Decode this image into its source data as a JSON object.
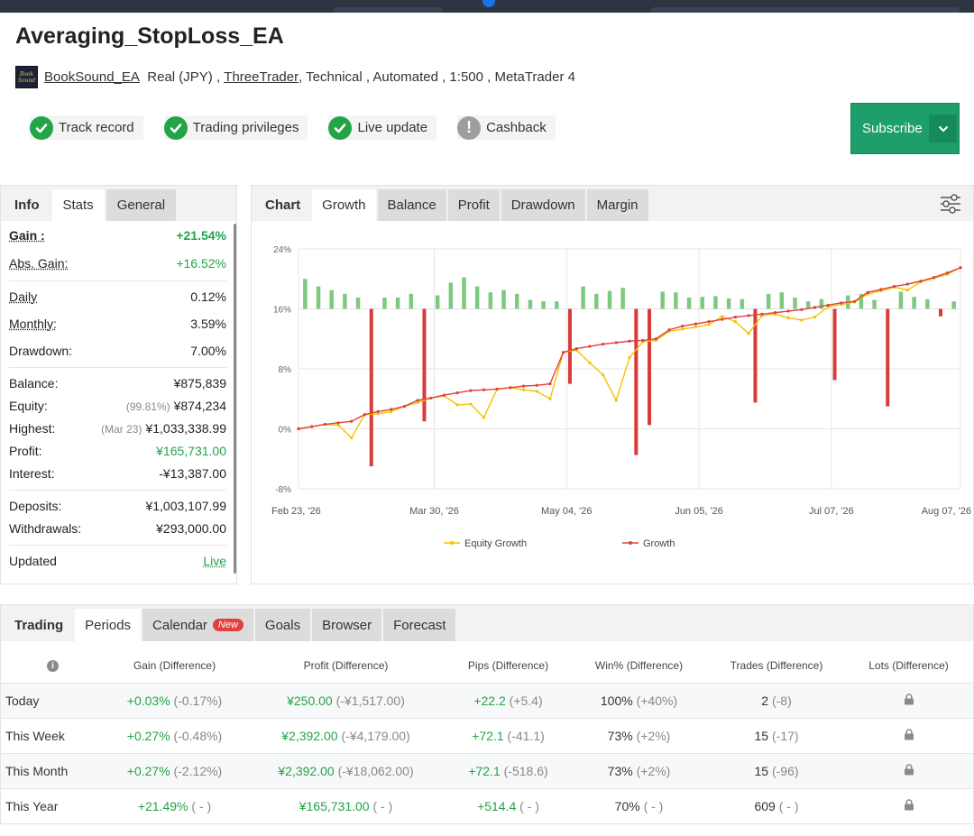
{
  "page": {
    "title": "Averaging_StopLoss_EA"
  },
  "meta": {
    "author": "BookSound_EA",
    "account": "Real (JPY) ,",
    "broker": "ThreeTrader",
    "details": ", Technical , Automated , 1:500 , MetaTrader 4",
    "logo_text": "Book Sound"
  },
  "badges": [
    {
      "label": "Track record",
      "status": "ok"
    },
    {
      "label": "Trading privileges",
      "status": "ok"
    },
    {
      "label": "Live update",
      "status": "ok"
    },
    {
      "label": "Cashback",
      "status": "none"
    }
  ],
  "subscribe": {
    "label": "Subscribe"
  },
  "left_tabs": [
    "Info",
    "Stats",
    "General"
  ],
  "stats": {
    "gain": {
      "label": "Gain :",
      "value": "+21.54%"
    },
    "abs_gain": {
      "label": "Abs. Gain:",
      "value": "+16.52%"
    },
    "daily": {
      "label": "Daily",
      "value": "0.12%"
    },
    "monthly": {
      "label": "Monthly:",
      "value": "3.59%"
    },
    "drawdown": {
      "label": "Drawdown:",
      "value": "7.00%"
    },
    "balance": {
      "label": "Balance:",
      "value": "¥875,839"
    },
    "equity": {
      "label": "Equity:",
      "note": "(99.81%)",
      "value": "¥874,234"
    },
    "highest": {
      "label": "Highest:",
      "note": "(Mar 23)",
      "value": "¥1,033,338.99"
    },
    "profit": {
      "label": "Profit:",
      "value": "¥165,731.00"
    },
    "interest": {
      "label": "Interest:",
      "value": "-¥13,387.00"
    },
    "deposits": {
      "label": "Deposits:",
      "value": "¥1,003,107.99"
    },
    "withdrawals": {
      "label": "Withdrawals:",
      "value": "¥293,000.00"
    },
    "updated": {
      "label": "Updated",
      "value": "Live"
    }
  },
  "chart_tabs": [
    "Chart",
    "Growth",
    "Balance",
    "Profit",
    "Drawdown",
    "Margin"
  ],
  "chart_data": {
    "type": "line",
    "y_ticks": [
      "24%",
      "16%",
      "8%",
      "0%",
      "-8%"
    ],
    "ylim": [
      -8,
      24
    ],
    "x_ticks": [
      "Feb 23, '26",
      "Mar 30, '26",
      "May 04, '26",
      "Jun 05, '26",
      "Jul 07, '26",
      "Aug 07, '26"
    ],
    "legend": [
      "Equity Growth",
      "Growth"
    ],
    "legend_position": "bottom",
    "grid": true,
    "colors": {
      "growth": "#e0413d",
      "equity": "#f2c200",
      "bar_pos": "#7cc97f",
      "bar_neg": "#d93b3b"
    },
    "series": [
      {
        "name": "Growth",
        "x": [
          0,
          2,
          4,
          6,
          8,
          10,
          12,
          14,
          16,
          18,
          20,
          22,
          24,
          26,
          28,
          30,
          32,
          34,
          36,
          38,
          40,
          42,
          44,
          46,
          48,
          50,
          52,
          54,
          56,
          58,
          60,
          62,
          64,
          66,
          68,
          70,
          72,
          74,
          76,
          78,
          80,
          82,
          84,
          86,
          88,
          90,
          92,
          94,
          96,
          98,
          100
        ],
        "values": [
          0.0,
          0.3,
          0.6,
          0.8,
          1.0,
          1.9,
          2.3,
          2.6,
          3.0,
          3.8,
          4.1,
          4.5,
          4.8,
          5.1,
          5.2,
          5.3,
          5.5,
          5.7,
          5.8,
          6.0,
          10.2,
          10.7,
          11.0,
          11.3,
          11.5,
          11.7,
          11.8,
          12.0,
          13.2,
          13.7,
          14.0,
          14.3,
          14.6,
          14.9,
          15.1,
          15.3,
          15.5,
          15.7,
          15.9,
          16.2,
          16.5,
          16.8,
          17.0,
          18.2,
          18.6,
          19.0,
          19.3,
          19.7,
          20.2,
          20.8,
          21.5
        ]
      },
      {
        "name": "Equity Growth",
        "x": [
          0,
          2,
          4,
          6,
          8,
          10,
          12,
          14,
          16,
          18,
          20,
          22,
          24,
          26,
          28,
          30,
          32,
          34,
          36,
          38,
          40,
          42,
          44,
          46,
          48,
          50,
          52,
          54,
          56,
          58,
          60,
          62,
          64,
          66,
          68,
          70,
          72,
          74,
          76,
          78,
          80,
          82,
          84,
          86,
          88,
          90,
          92,
          94,
          96,
          98,
          100
        ],
        "values": [
          0.0,
          0.3,
          0.6,
          0.5,
          -1.2,
          1.9,
          2.0,
          2.3,
          3.0,
          3.5,
          4.1,
          4.4,
          3.2,
          3.3,
          1.5,
          5.3,
          5.5,
          5.2,
          5.0,
          4.0,
          10.2,
          10.5,
          8.8,
          7.2,
          3.8,
          9.5,
          11.6,
          11.8,
          13.0,
          13.3,
          13.6,
          13.9,
          15.0,
          14.3,
          12.7,
          15.1,
          15.3,
          14.8,
          14.5,
          14.9,
          16.3,
          16.6,
          16.9,
          18.0,
          18.4,
          18.9,
          18.5,
          19.6,
          20.1,
          20.6,
          21.5
        ]
      }
    ],
    "bars": {
      "x": [
        1,
        3,
        5,
        7,
        9,
        11,
        13,
        15,
        17,
        19,
        21,
        23,
        25,
        27,
        29,
        31,
        33,
        35,
        37,
        39,
        41,
        43,
        45,
        47,
        49,
        51,
        53,
        55,
        57,
        59,
        61,
        63,
        65,
        67,
        69,
        71,
        73,
        75,
        77,
        79,
        81,
        83,
        85,
        87,
        89,
        91,
        93,
        95,
        97,
        99
      ],
      "values": [
        4,
        3,
        2.5,
        2,
        1.5,
        -21,
        1.5,
        1.5,
        2,
        -15,
        1.8,
        3.5,
        4.2,
        3,
        2.2,
        2.5,
        2,
        1.2,
        1,
        1,
        -10,
        3,
        2,
        2.4,
        2.8,
        -19.5,
        -15.5,
        2.3,
        2.2,
        1.5,
        1.6,
        1.7,
        1.4,
        1.3,
        -12.5,
        2,
        2.2,
        1.5,
        1,
        1.3,
        -9.5,
        1.8,
        2,
        1.2,
        -13,
        2.3,
        1.6,
        1.3,
        -1,
        1
      ]
    }
  },
  "bottom_tabs": [
    {
      "label": "Trading"
    },
    {
      "label": "Periods"
    },
    {
      "label": "Calendar",
      "badge": "New"
    },
    {
      "label": "Goals"
    },
    {
      "label": "Browser"
    },
    {
      "label": "Forecast"
    }
  ],
  "periods": {
    "headers": [
      "Gain (Difference)",
      "Profit (Difference)",
      "Pips (Difference)",
      "Win% (Difference)",
      "Trades (Difference)",
      "Lots (Difference)"
    ],
    "rows": [
      {
        "label": "Today",
        "gain": "+0.03%",
        "gain_d": "(-0.17%)",
        "profit": "¥250.00",
        "profit_d": "(-¥1,517.00)",
        "pips": "+22.2",
        "pips_d": "(+5.4)",
        "win": "100%",
        "win_d": "(+40%)",
        "trades": "2",
        "trades_d": "(-8)"
      },
      {
        "label": "This Week",
        "gain": "+0.27%",
        "gain_d": "(-0.48%)",
        "profit": "¥2,392.00",
        "profit_d": "(-¥4,179.00)",
        "pips": "+72.1",
        "pips_d": "(-41.1)",
        "win": "73%",
        "win_d": "(+2%)",
        "trades": "15",
        "trades_d": "(-17)"
      },
      {
        "label": "This Month",
        "gain": "+0.27%",
        "gain_d": "(-2.12%)",
        "profit": "¥2,392.00",
        "profit_d": "(-¥18,062.00)",
        "pips": "+72.1",
        "pips_d": "(-518.6)",
        "win": "73%",
        "win_d": "(+2%)",
        "trades": "15",
        "trades_d": "(-96)"
      },
      {
        "label": "This Year",
        "gain": "+21.49%",
        "gain_d": "( - )",
        "profit": "¥165,731.00",
        "profit_d": "( - )",
        "pips": "+514.4",
        "pips_d": "( - )",
        "win": "70%",
        "win_d": "( - )",
        "trades": "609",
        "trades_d": "( - )"
      }
    ]
  }
}
